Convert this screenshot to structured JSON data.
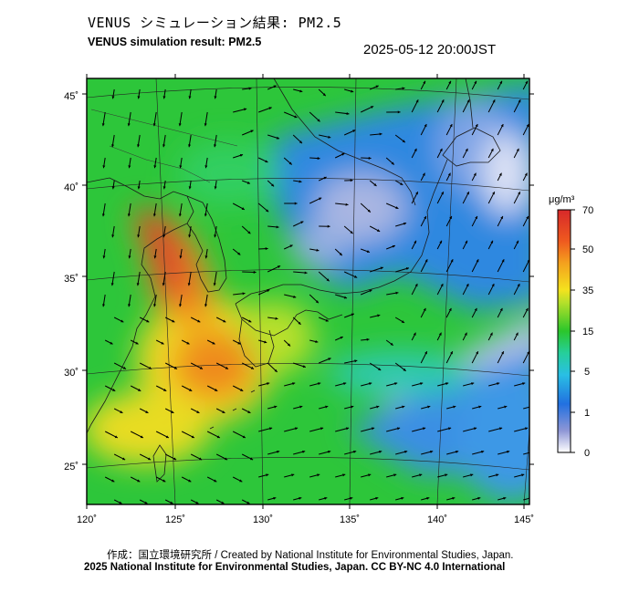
{
  "header": {
    "title_jp": "VENUS シミュレーション結果: PM2.5",
    "title_en": "VENUS simulation result: PM2.5",
    "timestamp": "2025-05-12 20:00JST"
  },
  "map": {
    "lon_labels": [
      "120˚",
      "125˚",
      "130˚",
      "135˚",
      "140˚",
      "145˚"
    ],
    "lat_labels": [
      "45˚",
      "40˚",
      "35˚",
      "30˚",
      "25˚"
    ],
    "wind_vectors": "arrows",
    "colors": {
      "frame": "#000000",
      "coast": "#1a1a1a",
      "grid": "#111111",
      "arrow": "#000000"
    }
  },
  "colorbar": {
    "unit": "μg/m³",
    "ticks": [
      "70",
      "50",
      "35",
      "15",
      "5",
      "1",
      "0"
    ],
    "stops": [
      "#d7282a",
      "#f08c1e",
      "#f4e21e",
      "#2bc62b",
      "#29bfe4",
      "#2270e0",
      "#ffffff"
    ]
  },
  "footer": {
    "credit": "作成：国立環境研究所 / Created by National Institute for Environmental Studies, Japan.",
    "license": "2025 National Institute for Environmental Studies, Japan. CC BY-NC 4.0 International"
  }
}
